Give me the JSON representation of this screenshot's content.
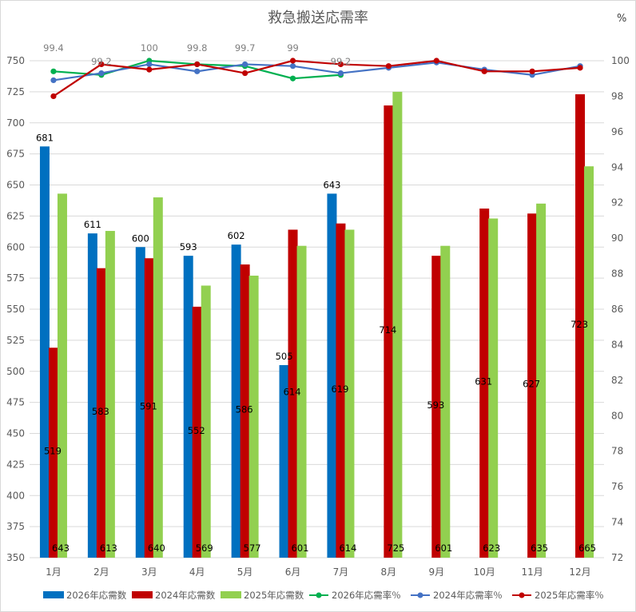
{
  "chart_data": {
    "type": "bar",
    "title": "救急搬送応需率",
    "right_axis_unit": "%",
    "categories": [
      "1月",
      "2月",
      "3月",
      "4月",
      "5月",
      "6月",
      "7月",
      "8月",
      "9月",
      "10月",
      "11月",
      "12月"
    ],
    "left_axis": {
      "ylim": [
        350,
        750
      ],
      "ticks": [
        350,
        375,
        400,
        425,
        450,
        475,
        500,
        525,
        550,
        575,
        600,
        625,
        650,
        675,
        700,
        725,
        750
      ]
    },
    "right_axis": {
      "ylim": [
        72,
        100
      ],
      "ticks": [
        72,
        74,
        76,
        78,
        80,
        82,
        84,
        86,
        88,
        90,
        92,
        94,
        96,
        98,
        100
      ]
    },
    "grid": true,
    "legend_position": "bottom",
    "bar_series": [
      {
        "name": "2026年応需数",
        "color": "#0070C0",
        "values": [
          681,
          611,
          600,
          593,
          602,
          505,
          643,
          null,
          null,
          null,
          null,
          null
        ]
      },
      {
        "name": "2024年応需数",
        "color": "#C00000",
        "values": [
          519,
          583,
          591,
          552,
          586,
          614,
          619,
          714,
          593,
          631,
          627,
          723
        ]
      },
      {
        "name": "2025年応需数",
        "color": "#92D050",
        "values": [
          643,
          613,
          640,
          569,
          577,
          601,
          614,
          725,
          601,
          623,
          635,
          665
        ]
      }
    ],
    "line_series": [
      {
        "name": "2026年応需率％",
        "color": "#00B050",
        "values": [
          99.4,
          99.2,
          100,
          99.8,
          99.7,
          99.0,
          99.2,
          null,
          null,
          null,
          null,
          null
        ]
      },
      {
        "name": "2024年応需率％",
        "color": "#4472C4",
        "values": [
          98.9,
          99.3,
          99.8,
          99.4,
          99.8,
          99.7,
          99.3,
          99.6,
          99.9,
          99.5,
          99.2,
          99.7
        ]
      },
      {
        "name": "2025年応需率％",
        "color": "#C00000",
        "values": [
          98.0,
          99.8,
          99.5,
          99.8,
          99.3,
          100,
          99.8,
          99.7,
          100,
          99.4,
          99.4,
          99.6
        ]
      }
    ],
    "line_labels": [
      "99.4",
      "99.2",
      "100",
      "99.8",
      "99.7",
      "99",
      "99.2"
    ]
  }
}
